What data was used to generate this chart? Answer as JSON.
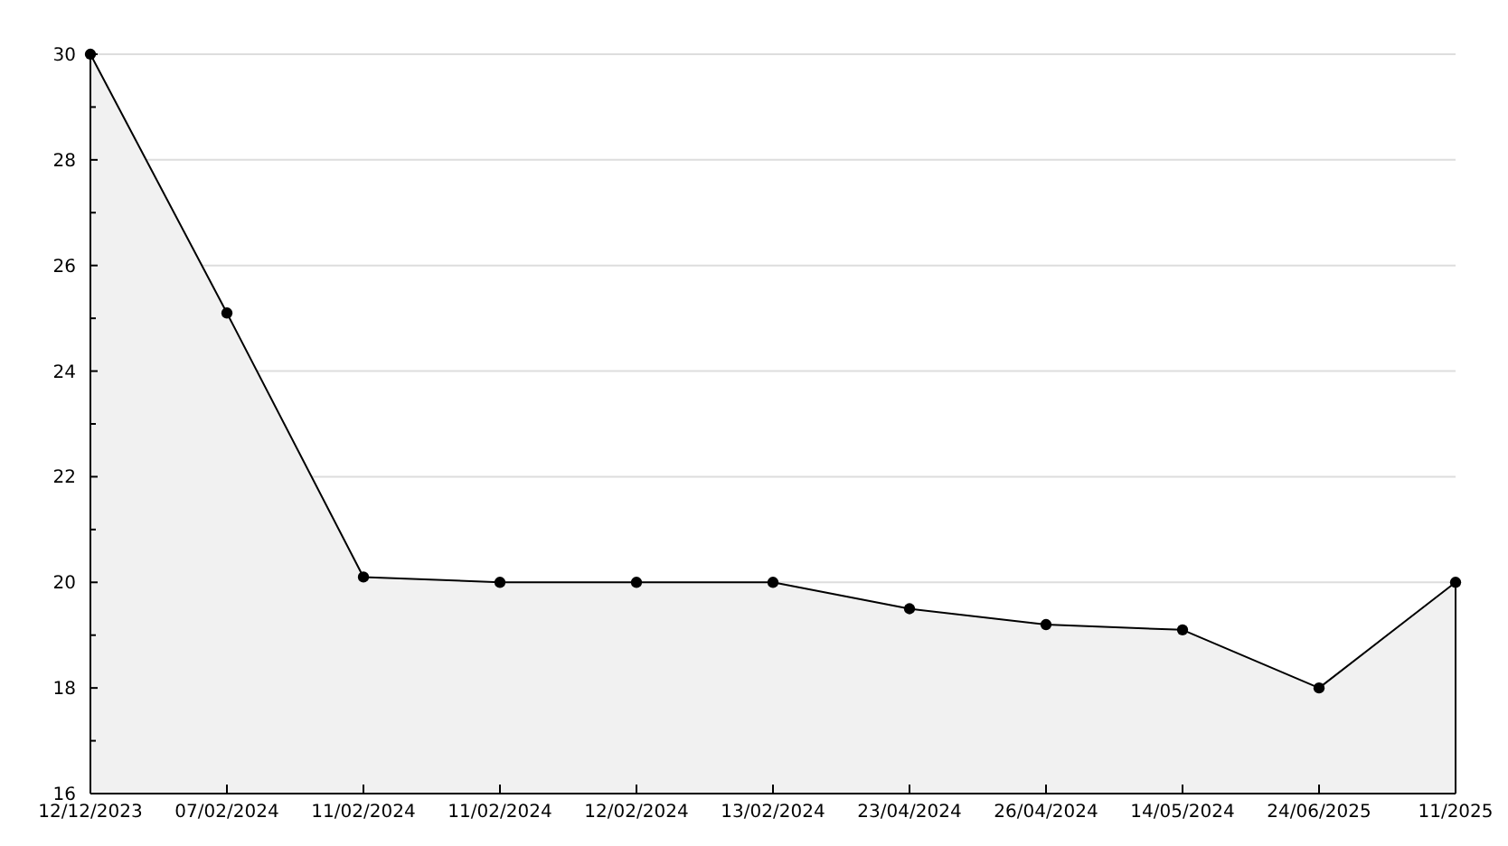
{
  "chart_data": {
    "type": "area",
    "categories": [
      "12/12/2023",
      "07/02/2024",
      "11/02/2024",
      "11/02/2024",
      "12/02/2024",
      "13/02/2024",
      "23/04/2024",
      "26/04/2024",
      "14/05/2024",
      "24/06/2025",
      "11/2025"
    ],
    "series": [
      {
        "color": "#000000",
        "values": [
          30,
          25.1,
          20.1,
          20.0,
          20.0,
          20.0,
          19.5,
          19.2,
          19.1,
          18.0,
          20.0
        ]
      }
    ],
    "ylim": [
      16,
      30
    ],
    "yticks": [
      16,
      {
        "value": 17,
        "label": null
      },
      18,
      {
        "value": 19,
        "label": null
      },
      20,
      {
        "value": 21,
        "label": null
      },
      22,
      {
        "value": 23,
        "label": null
      },
      24,
      {
        "value": 25,
        "label": null
      },
      26,
      {
        "value": 27,
        "label": null
      },
      28,
      {
        "value": 29,
        "label": null
      },
      30
    ],
    "grid": "y",
    "marker": "circle",
    "line_style": "solid"
  }
}
